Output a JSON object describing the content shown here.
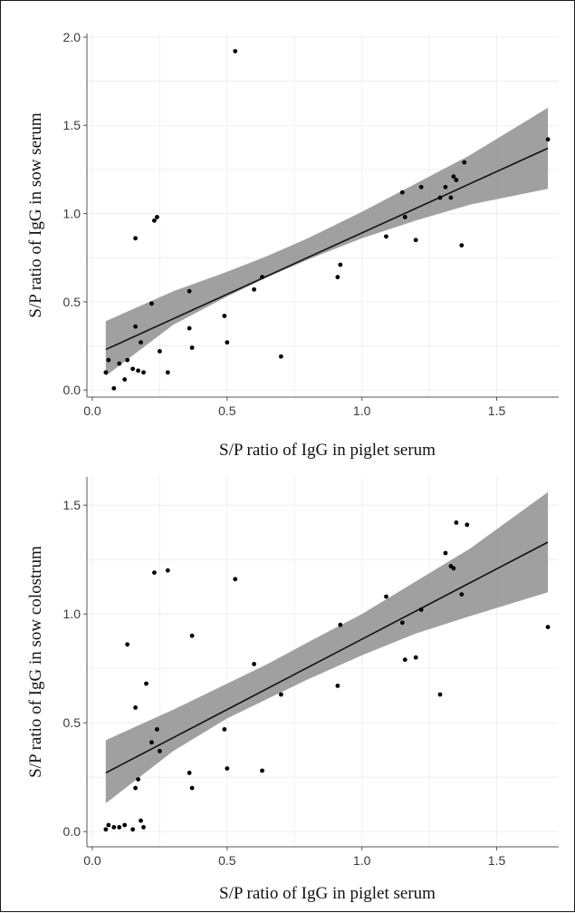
{
  "chart_data": [
    {
      "type": "scatter",
      "xlabel": "S/P ratio of IgG in piglet serum",
      "ylabel": "S/P ratio of IgG in sow serum",
      "xlim": [
        -0.02,
        1.73
      ],
      "ylim": [
        -0.04,
        2.02
      ],
      "xticks": [
        0.0,
        0.5,
        1.0,
        1.5
      ],
      "xtick_labels": [
        "0.0",
        "0.5",
        "1.0",
        "1.5"
      ],
      "yticks": [
        0.0,
        0.5,
        1.0,
        1.5,
        2.0
      ],
      "ytick_labels": [
        "0.0",
        "0.5",
        "1.0",
        "1.5",
        "2.0"
      ],
      "grid": true,
      "regression": {
        "x0": 0.05,
        "y0": 0.23,
        "x1": 1.69,
        "y1": 1.37
      },
      "confidence_band": {
        "x": [
          0.05,
          0.3,
          0.5,
          0.65,
          0.8,
          1.0,
          1.2,
          1.4,
          1.69
        ],
        "lower": [
          0.08,
          0.37,
          0.53,
          0.64,
          0.74,
          0.86,
          0.96,
          1.05,
          1.14
        ],
        "upper": [
          0.39,
          0.56,
          0.67,
          0.76,
          0.86,
          1.01,
          1.17,
          1.33,
          1.6
        ]
      },
      "points": [
        {
          "x": 0.05,
          "y": 0.1
        },
        {
          "x": 0.06,
          "y": 0.17
        },
        {
          "x": 0.08,
          "y": 0.01
        },
        {
          "x": 0.1,
          "y": 0.15
        },
        {
          "x": 0.12,
          "y": 0.06
        },
        {
          "x": 0.13,
          "y": 0.17
        },
        {
          "x": 0.15,
          "y": 0.12
        },
        {
          "x": 0.16,
          "y": 0.86
        },
        {
          "x": 0.16,
          "y": 0.36
        },
        {
          "x": 0.17,
          "y": 0.11
        },
        {
          "x": 0.18,
          "y": 0.27
        },
        {
          "x": 0.19,
          "y": 0.1
        },
        {
          "x": 0.22,
          "y": 0.49
        },
        {
          "x": 0.23,
          "y": 0.96
        },
        {
          "x": 0.24,
          "y": 0.98
        },
        {
          "x": 0.25,
          "y": 0.22
        },
        {
          "x": 0.28,
          "y": 0.1
        },
        {
          "x": 0.36,
          "y": 0.56
        },
        {
          "x": 0.36,
          "y": 0.35
        },
        {
          "x": 0.37,
          "y": 0.24
        },
        {
          "x": 0.49,
          "y": 0.42
        },
        {
          "x": 0.5,
          "y": 0.27
        },
        {
          "x": 0.53,
          "y": 1.92
        },
        {
          "x": 0.6,
          "y": 0.57
        },
        {
          "x": 0.63,
          "y": 0.64
        },
        {
          "x": 0.7,
          "y": 0.19
        },
        {
          "x": 0.91,
          "y": 0.64
        },
        {
          "x": 0.92,
          "y": 0.71
        },
        {
          "x": 1.09,
          "y": 0.87
        },
        {
          "x": 1.15,
          "y": 1.12
        },
        {
          "x": 1.16,
          "y": 0.98
        },
        {
          "x": 1.2,
          "y": 0.85
        },
        {
          "x": 1.22,
          "y": 1.15
        },
        {
          "x": 1.29,
          "y": 1.09
        },
        {
          "x": 1.31,
          "y": 1.15
        },
        {
          "x": 1.33,
          "y": 1.09
        },
        {
          "x": 1.34,
          "y": 1.21
        },
        {
          "x": 1.35,
          "y": 1.19
        },
        {
          "x": 1.37,
          "y": 0.82
        },
        {
          "x": 1.38,
          "y": 1.29
        },
        {
          "x": 1.69,
          "y": 1.42
        }
      ]
    },
    {
      "type": "scatter",
      "xlabel": "S/P ratio of IgG in piglet serum",
      "ylabel": "S/P ratio of IgG in sow colostrum",
      "xlim": [
        -0.02,
        1.73
      ],
      "ylim": [
        -0.07,
        1.63
      ],
      "xticks": [
        0.0,
        0.5,
        1.0,
        1.5
      ],
      "xtick_labels": [
        "0.0",
        "0.5",
        "1.0",
        "1.5"
      ],
      "yticks": [
        0.0,
        0.5,
        1.0,
        1.5
      ],
      "ytick_labels": [
        "0.0",
        "0.5",
        "1.0",
        "1.5"
      ],
      "grid": true,
      "regression": {
        "x0": 0.05,
        "y0": 0.27,
        "x1": 1.69,
        "y1": 1.33
      },
      "confidence_band": {
        "x": [
          0.05,
          0.3,
          0.5,
          0.65,
          0.8,
          1.0,
          1.2,
          1.4,
          1.69
        ],
        "lower": [
          0.13,
          0.37,
          0.52,
          0.61,
          0.7,
          0.81,
          0.91,
          0.99,
          1.1
        ],
        "upper": [
          0.42,
          0.56,
          0.68,
          0.77,
          0.87,
          1.0,
          1.15,
          1.3,
          1.56
        ]
      },
      "points": [
        {
          "x": 0.05,
          "y": 0.01
        },
        {
          "x": 0.06,
          "y": 0.03
        },
        {
          "x": 0.08,
          "y": 0.02
        },
        {
          "x": 0.1,
          "y": 0.02
        },
        {
          "x": 0.12,
          "y": 0.03
        },
        {
          "x": 0.13,
          "y": 0.86
        },
        {
          "x": 0.15,
          "y": 0.01
        },
        {
          "x": 0.16,
          "y": 0.2
        },
        {
          "x": 0.16,
          "y": 0.57
        },
        {
          "x": 0.17,
          "y": 0.24
        },
        {
          "x": 0.18,
          "y": 0.05
        },
        {
          "x": 0.19,
          "y": 0.02
        },
        {
          "x": 0.2,
          "y": 0.68
        },
        {
          "x": 0.22,
          "y": 0.41
        },
        {
          "x": 0.23,
          "y": 1.19
        },
        {
          "x": 0.24,
          "y": 0.47
        },
        {
          "x": 0.25,
          "y": 0.37
        },
        {
          "x": 0.28,
          "y": 1.2
        },
        {
          "x": 0.36,
          "y": 0.27
        },
        {
          "x": 0.37,
          "y": 0.9
        },
        {
          "x": 0.37,
          "y": 0.2
        },
        {
          "x": 0.49,
          "y": 0.47
        },
        {
          "x": 0.5,
          "y": 0.29
        },
        {
          "x": 0.53,
          "y": 1.16
        },
        {
          "x": 0.6,
          "y": 0.77
        },
        {
          "x": 0.63,
          "y": 0.28
        },
        {
          "x": 0.7,
          "y": 0.63
        },
        {
          "x": 0.91,
          "y": 0.67
        },
        {
          "x": 0.92,
          "y": 0.95
        },
        {
          "x": 1.09,
          "y": 1.08
        },
        {
          "x": 1.15,
          "y": 0.96
        },
        {
          "x": 1.16,
          "y": 0.79
        },
        {
          "x": 1.2,
          "y": 0.8
        },
        {
          "x": 1.22,
          "y": 1.02
        },
        {
          "x": 1.29,
          "y": 0.63
        },
        {
          "x": 1.31,
          "y": 1.28
        },
        {
          "x": 1.33,
          "y": 1.22
        },
        {
          "x": 1.34,
          "y": 1.21
        },
        {
          "x": 1.35,
          "y": 1.42
        },
        {
          "x": 1.37,
          "y": 1.09
        },
        {
          "x": 1.39,
          "y": 1.41
        },
        {
          "x": 1.69,
          "y": 0.94
        }
      ]
    }
  ]
}
